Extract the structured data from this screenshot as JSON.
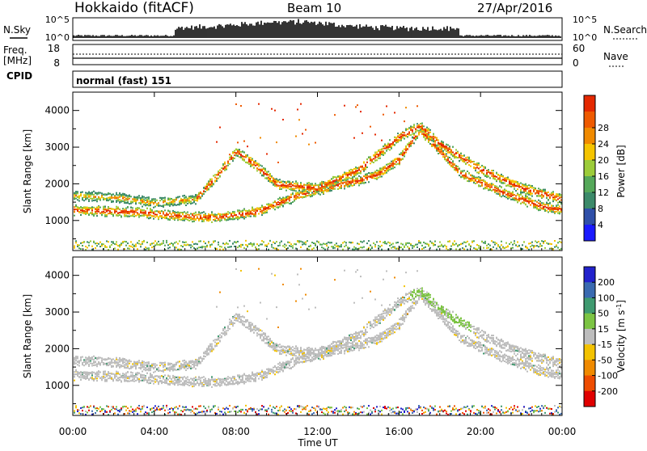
{
  "header": {
    "radar": "Hokkaido (fitACF)",
    "beam": "Beam 10",
    "date": "27/Apr/2016"
  },
  "left_labels": {
    "nsky": "N.Sky",
    "freq": "Freq.",
    "freq_unit": "[MHz]",
    "cpid": "CPID"
  },
  "right_labels": {
    "nsearch": "N.Search",
    "nave": "Nave"
  },
  "noise_axis": {
    "top_left": "10^5",
    "bottom_left": "10^0",
    "top_right": "10^5",
    "bottom_right": "10^0"
  },
  "freq_axis": {
    "left_top": "18",
    "left_bottom": "8",
    "right_top": "60",
    "right_bottom": "0"
  },
  "cpid_text": "normal (fast) 151",
  "x_axis": {
    "ticks": [
      "00:00",
      "04:00",
      "08:00",
      "12:00",
      "16:00",
      "20:00",
      "00:00"
    ],
    "label": "Time UT"
  },
  "y_axis": {
    "label": "Slant Range [km]",
    "ticks": [
      "1000",
      "2000",
      "3000",
      "4000"
    ]
  },
  "power_scale": {
    "label": "Power [dB]",
    "ticks": [
      "4",
      "8",
      "12",
      "16",
      "20",
      "24",
      "28"
    ],
    "colors": [
      "#1a1aff",
      "#2f4fa8",
      "#3c8a6a",
      "#55a85a",
      "#9ccc3a",
      "#f5c400",
      "#f08a00",
      "#ee5a00",
      "#e42800"
    ]
  },
  "velocity_scale": {
    "label": "Velocity [m s",
    "label_sup": "-1",
    "label_end": "]",
    "ticks": [
      "200",
      "100",
      "50",
      "15",
      "-15",
      "-50",
      "-100",
      "-200"
    ],
    "colors": [
      "#2222cc",
      "#3a6ab0",
      "#3f9a70",
      "#7cc443",
      "#bdbdbd",
      "#f3c200",
      "#f08a00",
      "#ee4c00",
      "#e00000"
    ]
  },
  "chart_data": [
    {
      "type": "heatmap",
      "title": "Power",
      "xlabel": "Time UT",
      "ylabel": "Slant Range [km]",
      "xlim": [
        0,
        24
      ],
      "ylim": [
        180,
        4500
      ],
      "colorbar": {
        "label": "Power [dB]",
        "ticks": [
          4,
          8,
          12,
          16,
          20,
          24,
          28
        ]
      },
      "echo_bands_km": [
        {
          "name": "lower band",
          "points": [
            [
              0,
              1300
            ],
            [
              3,
              1250
            ],
            [
              5,
              1150
            ],
            [
              7,
              1100
            ],
            [
              9,
              1250
            ],
            [
              11,
              1700
            ],
            [
              13,
              2000
            ],
            [
              14,
              2100
            ],
            [
              15,
              2300
            ],
            [
              16,
              2700
            ],
            [
              17,
              3500
            ],
            [
              18,
              2900
            ],
            [
              19,
              2300
            ],
            [
              21,
              1800
            ],
            [
              23,
              1400
            ],
            [
              24,
              1300
            ]
          ]
        },
        {
          "name": "upper band",
          "points": [
            [
              0,
              1700
            ],
            [
              2,
              1650
            ],
            [
              4,
              1500
            ],
            [
              6,
              1600
            ],
            [
              7,
              2200
            ],
            [
              8,
              2900
            ],
            [
              9,
              2500
            ],
            [
              10,
              2000
            ],
            [
              12,
              1900
            ],
            [
              14,
              2400
            ],
            [
              16,
              3300
            ],
            [
              17,
              3600
            ],
            [
              18,
              3100
            ],
            [
              20,
              2400
            ],
            [
              22,
              1900
            ],
            [
              24,
              1600
            ]
          ]
        }
      ]
    },
    {
      "type": "heatmap",
      "title": "Velocity",
      "xlabel": "Time UT",
      "ylabel": "Slant Range [km]",
      "xlim": [
        0,
        24
      ],
      "ylim": [
        180,
        4500
      ],
      "colorbar": {
        "label": "Velocity [m s-1]",
        "ticks": [
          200,
          100,
          50,
          15,
          -15,
          -50,
          -100,
          -200
        ]
      },
      "dominant_velocity": "-15 to 15",
      "positive_region_hours": [
        16.5,
        19
      ]
    }
  ]
}
